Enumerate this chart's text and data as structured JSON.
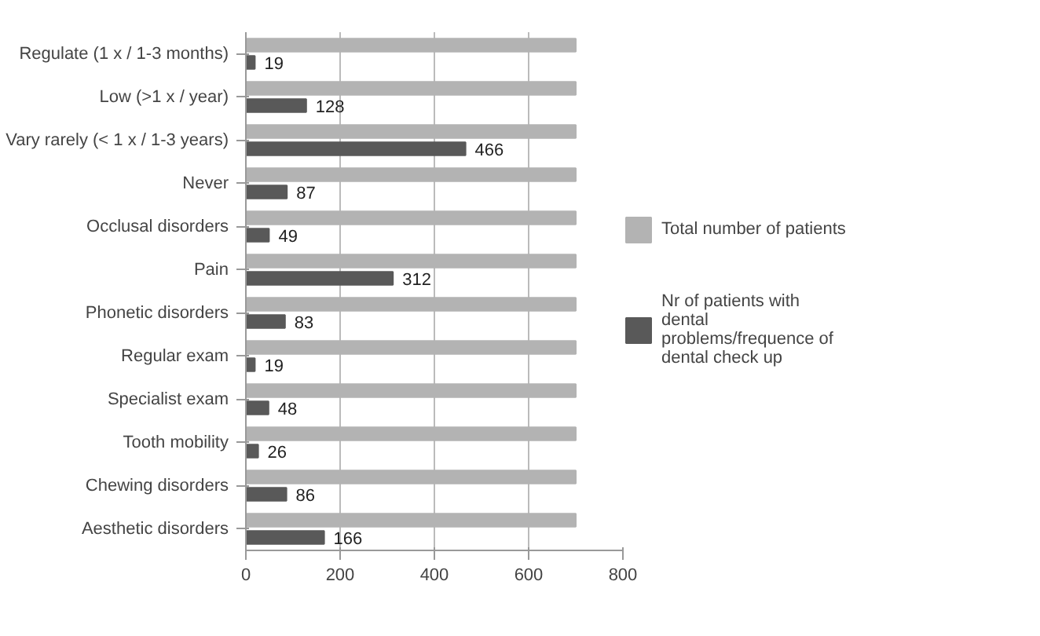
{
  "chart_data": {
    "type": "bar",
    "orientation": "horizontal",
    "categories": [
      "Regulate (1 x / 1-3 months)",
      "Low (>1 x / year)",
      "Vary rarely (< 1 x / 1-3 years)",
      "Never",
      "Occlusal disorders",
      "Pain",
      "Phonetic disorders",
      "Regular exam",
      "Specialist exam",
      "Tooth mobility",
      "Chewing disorders",
      "Aesthetic disorders"
    ],
    "series": [
      {
        "name": "Total number of patients",
        "color": "#b3b3b3",
        "values": [
          700,
          700,
          700,
          700,
          700,
          700,
          700,
          700,
          700,
          700,
          700,
          700
        ]
      },
      {
        "name": "Nr of patients with dental problems/frequence of dental check up",
        "color": "#595959",
        "values": [
          19,
          128,
          466,
          87,
          49,
          312,
          83,
          19,
          48,
          26,
          86,
          166
        ],
        "value_labels": [
          "19",
          "128",
          "466",
          "87",
          "49",
          "312",
          "83",
          "19",
          "48",
          "26",
          "86",
          "166"
        ]
      }
    ],
    "xlim": [
      0,
      800
    ],
    "xticks": [
      0,
      200,
      400,
      600,
      800
    ],
    "grid": "x",
    "legend": "right"
  }
}
